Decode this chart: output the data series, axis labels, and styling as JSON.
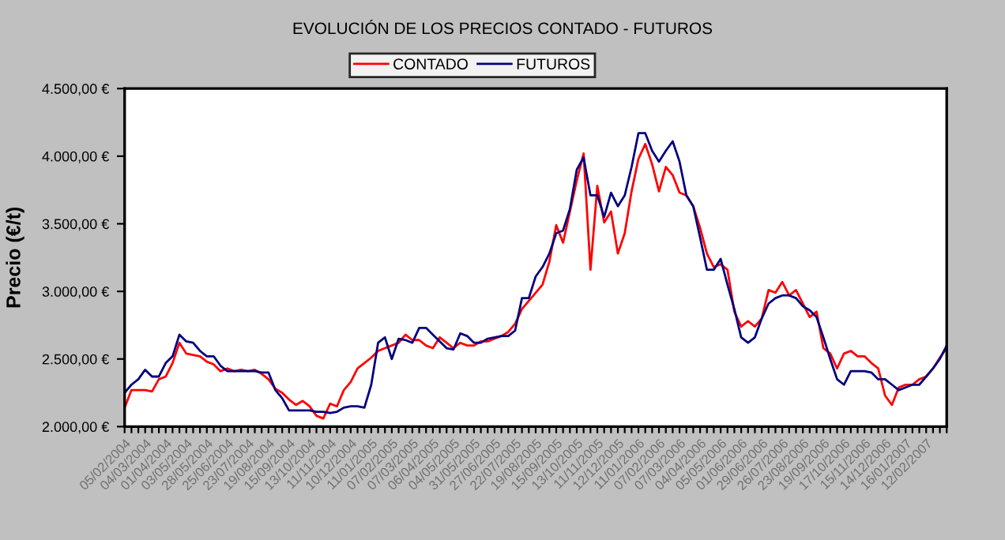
{
  "chart_data": {
    "type": "line",
    "title": "EVOLUCIÓN DE LOS PRECIOS CONTADO - FUTUROS",
    "ylabel": "Precio (€/t)",
    "categories": [
      "05/02/2004",
      null,
      null,
      "04/03/2004",
      null,
      null,
      "01/04/2004",
      null,
      null,
      "03/05/2004",
      null,
      null,
      "28/05/2004",
      null,
      null,
      "25/06/2004",
      null,
      null,
      "23/07/2004",
      null,
      null,
      "19/08/2004",
      null,
      null,
      "15/09/2004",
      null,
      null,
      "13/10/2004",
      null,
      null,
      "11/11/2004",
      null,
      null,
      "10/12/2004",
      null,
      null,
      "11/01/2005",
      null,
      null,
      "07/02/2005",
      null,
      null,
      "07/03/2005",
      null,
      null,
      "06/04/2005",
      null,
      null,
      "04/05/2005",
      null,
      null,
      "31/05/2005",
      null,
      null,
      "27/06/2005",
      null,
      null,
      "22/07/2005",
      null,
      null,
      "19/08/2005",
      null,
      null,
      "15/09/2005",
      null,
      null,
      "13/10/2005",
      null,
      null,
      "11/11/2005",
      null,
      null,
      "12/12/2005",
      null,
      null,
      "11/01/2006",
      null,
      null,
      "07/02/2006",
      null,
      null,
      "07/03/2006",
      null,
      null,
      "04/04/2006",
      null,
      null,
      "05/05/2006",
      null,
      null,
      "01/06/2006",
      null,
      null,
      "29/06/2006",
      null,
      null,
      "26/07/2006",
      null,
      null,
      "23/08/2006",
      null,
      null,
      "19/09/2006",
      null,
      null,
      "17/10/2006",
      null,
      null,
      "15/11/2006",
      null,
      null,
      "14/12/2006",
      null,
      null,
      "16/01/2007",
      null,
      null,
      "12/02/2007",
      null,
      null,
      null
    ],
    "series": [
      {
        "name": "CONTADO",
        "color": "#ff0000",
        "values": [
          2140,
          2270,
          2270,
          2270,
          2260,
          2350,
          2370,
          2470,
          2620,
          2540,
          2530,
          2520,
          2480,
          2460,
          2410,
          2430,
          2410,
          2420,
          2410,
          2420,
          2390,
          2350,
          2280,
          2250,
          2200,
          2160,
          2190,
          2150,
          2080,
          2060,
          2170,
          2150,
          2270,
          2330,
          2430,
          2470,
          2510,
          2560,
          2580,
          2600,
          2620,
          2680,
          2640,
          2640,
          2600,
          2580,
          2660,
          2620,
          2580,
          2620,
          2600,
          2600,
          2630,
          2630,
          2650,
          2670,
          2700,
          2760,
          2870,
          2930,
          2990,
          3050,
          3220,
          3490,
          3360,
          3590,
          3820,
          4020,
          3160,
          3780,
          3510,
          3590,
          3280,
          3430,
          3740,
          3980,
          4090,
          3940,
          3740,
          3920,
          3860,
          3730,
          3710,
          3630,
          3470,
          3280,
          3180,
          3200,
          3160,
          2850,
          2740,
          2780,
          2740,
          2800,
          3010,
          2990,
          3070,
          2970,
          3010,
          2910,
          2810,
          2850,
          2580,
          2540,
          2430,
          2540,
          2560,
          2520,
          2520,
          2470,
          2430,
          2230,
          2160,
          2290,
          2310,
          2310,
          2350,
          2370,
          2430,
          2510,
          2580
        ]
      },
      {
        "name": "FUTUROS",
        "color": "#000080",
        "values": [
          2250,
          2310,
          2350,
          2420,
          2370,
          2370,
          2470,
          2520,
          2680,
          2630,
          2620,
          2560,
          2520,
          2520,
          2450,
          2410,
          2410,
          2410,
          2410,
          2410,
          2400,
          2400,
          2270,
          2210,
          2120,
          2120,
          2120,
          2120,
          2110,
          2110,
          2100,
          2110,
          2140,
          2150,
          2150,
          2140,
          2310,
          2620,
          2660,
          2500,
          2650,
          2640,
          2620,
          2730,
          2730,
          2680,
          2630,
          2580,
          2570,
          2690,
          2670,
          2620,
          2620,
          2650,
          2660,
          2670,
          2670,
          2710,
          2950,
          2950,
          3110,
          3180,
          3280,
          3430,
          3450,
          3610,
          3900,
          3990,
          3710,
          3710,
          3550,
          3730,
          3630,
          3710,
          3920,
          4170,
          4170,
          4040,
          3960,
          4040,
          4110,
          3960,
          3710,
          3630,
          3400,
          3160,
          3160,
          3240,
          3050,
          2870,
          2660,
          2620,
          2660,
          2800,
          2910,
          2950,
          2970,
          2970,
          2950,
          2890,
          2860,
          2810,
          2660,
          2500,
          2350,
          2310,
          2410,
          2410,
          2410,
          2400,
          2350,
          2350,
          2310,
          2270,
          2290,
          2310,
          2310,
          2370,
          2430,
          2500,
          2600
        ]
      }
    ],
    "ylim": [
      2000,
      4500
    ],
    "yticks": [
      {
        "value": 2000,
        "label": "2.000,00 €"
      },
      {
        "value": 2500,
        "label": "2.500,00 €"
      },
      {
        "value": 3000,
        "label": "3.000,00 €"
      },
      {
        "value": 3500,
        "label": "3.500,00 €"
      },
      {
        "value": 4000,
        "label": "4.000,00 €"
      },
      {
        "value": 4500,
        "label": "4.500,00 €"
      }
    ],
    "legend": "top",
    "line_style": "solid",
    "marker": "none"
  }
}
